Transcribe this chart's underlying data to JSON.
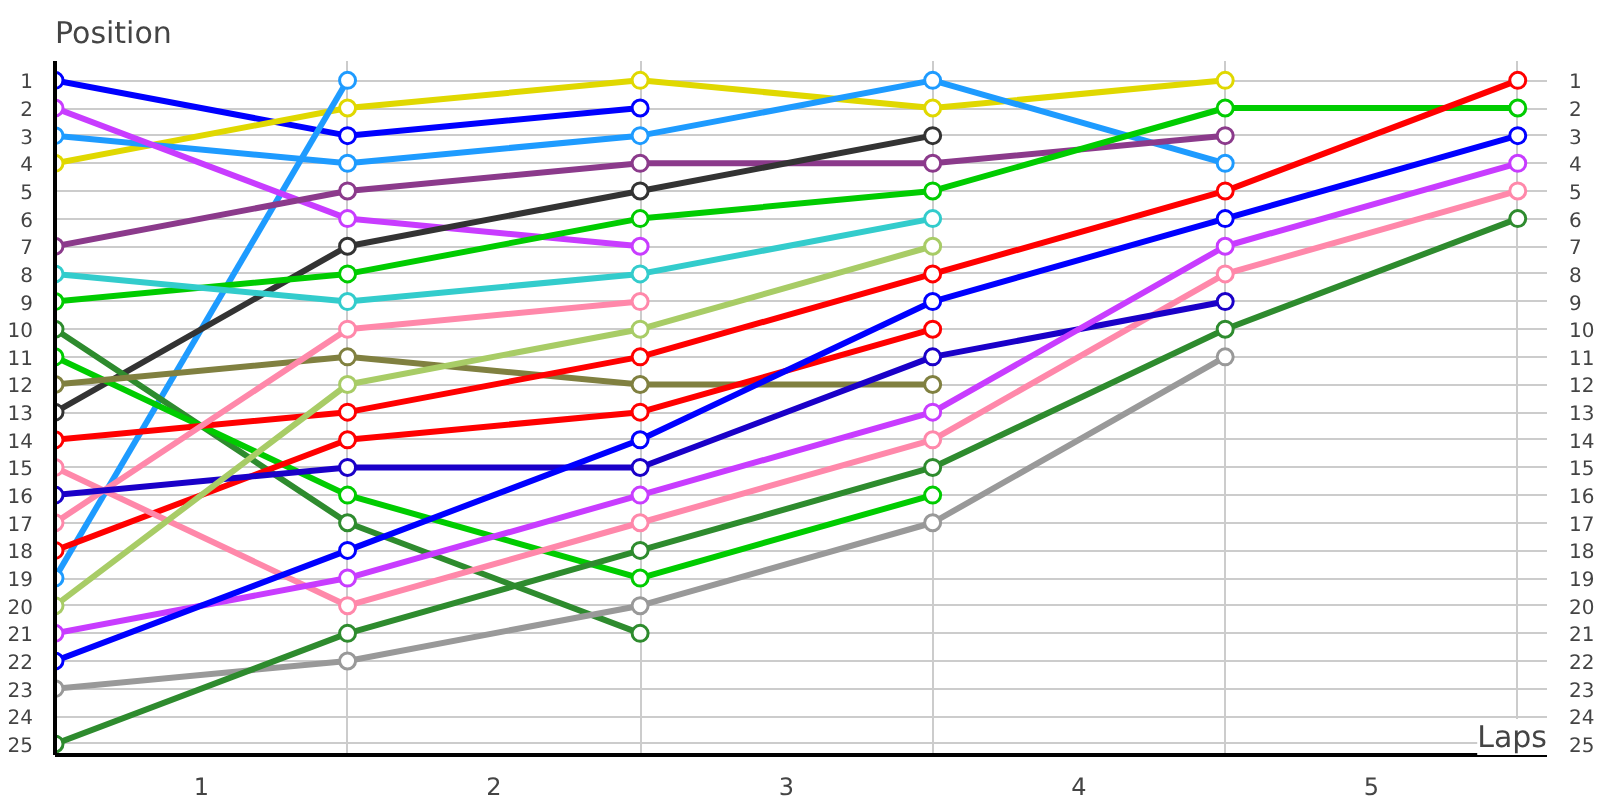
{
  "chart_data": {
    "type": "line",
    "xlabel": "Laps",
    "ylabel": "Position",
    "x": [
      0,
      1,
      2,
      3,
      4,
      5
    ],
    "xlim": [
      0,
      5.1
    ],
    "xticks": [
      {
        "value": 0.5,
        "label": "1"
      },
      {
        "value": 1.5,
        "label": "2"
      },
      {
        "value": 2.5,
        "label": "3"
      },
      {
        "value": 3.5,
        "label": "4"
      },
      {
        "value": 4.5,
        "label": "5"
      },
      {
        "value": 1,
        "label": null
      },
      {
        "value": 2,
        "label": null
      },
      {
        "value": 3,
        "label": null
      },
      {
        "value": 4,
        "label": null
      },
      {
        "value": 5,
        "label": null
      }
    ],
    "ylim": [
      25.4,
      0.3
    ],
    "yticks": [
      1,
      2,
      3,
      4,
      5,
      6,
      7,
      8,
      9,
      10,
      11,
      12,
      13,
      14,
      15,
      16,
      17,
      18,
      19,
      20,
      21,
      22,
      23,
      24,
      25
    ],
    "y2lim": [
      25.4,
      0.3
    ],
    "y2ticks": [
      1,
      2,
      3,
      4,
      5,
      6,
      7,
      8,
      9,
      10,
      11,
      12,
      13,
      14,
      15,
      16,
      17,
      18,
      19,
      20,
      21,
      22,
      23,
      24,
      25
    ],
    "grid": true,
    "marker": "circle",
    "line_style": "solid",
    "series": [
      {
        "color": "#0000ff",
        "values": [
          1,
          3,
          2,
          null,
          null,
          null
        ]
      },
      {
        "color": "#e0d800",
        "values": [
          4,
          2,
          1,
          2,
          1,
          null
        ]
      },
      {
        "color": "#1e9bff",
        "values": [
          19,
          1,
          null,
          null,
          null,
          null
        ]
      },
      {
        "color": "#1e9bff",
        "values": [
          3,
          4,
          3,
          1,
          4,
          null
        ]
      },
      {
        "color": "#c83cff",
        "values": [
          2,
          6,
          7,
          null,
          null,
          null
        ]
      },
      {
        "color": "#8b3a8b",
        "values": [
          7,
          5,
          4,
          4,
          3,
          null
        ]
      },
      {
        "color": "#333333",
        "values": [
          13,
          7,
          5,
          3,
          null,
          null
        ]
      },
      {
        "color": "#00cc00",
        "values": [
          9,
          8,
          6,
          5,
          2,
          2
        ]
      },
      {
        "color": "#33cccc",
        "values": [
          8,
          9,
          8,
          6,
          null,
          null
        ]
      },
      {
        "color": "#2e8b2e",
        "values": [
          10,
          17,
          21,
          null,
          null,
          null
        ]
      },
      {
        "color": "#00cc00",
        "values": [
          11,
          16,
          19,
          16,
          null,
          null
        ]
      },
      {
        "color": "#808040",
        "values": [
          12,
          11,
          12,
          12,
          null,
          null
        ]
      },
      {
        "color": "#ff0000",
        "values": [
          14,
          13,
          11,
          8,
          5,
          1
        ]
      },
      {
        "color": "#ff0000",
        "values": [
          18,
          14,
          13,
          10,
          null,
          null
        ]
      },
      {
        "color": "#ff88aa",
        "values": [
          15,
          20,
          17,
          14,
          8,
          5
        ]
      },
      {
        "color": "#ff88aa",
        "values": [
          17,
          10,
          9,
          null,
          null,
          null
        ]
      },
      {
        "color": "#1a00c8",
        "values": [
          16,
          15,
          15,
          11,
          9,
          null
        ]
      },
      {
        "color": "#a8cc66",
        "values": [
          20,
          12,
          10,
          7,
          null,
          null
        ]
      },
      {
        "color": "#c83cff",
        "values": [
          21,
          19,
          16,
          13,
          7,
          4
        ]
      },
      {
        "color": "#0000ff",
        "values": [
          22,
          18,
          14,
          9,
          6,
          3
        ]
      },
      {
        "color": "#999999",
        "values": [
          23,
          22,
          20,
          17,
          11,
          null
        ]
      },
      {
        "color": "#2e8b2e",
        "values": [
          25,
          21,
          18,
          15,
          10,
          6
        ]
      }
    ]
  }
}
